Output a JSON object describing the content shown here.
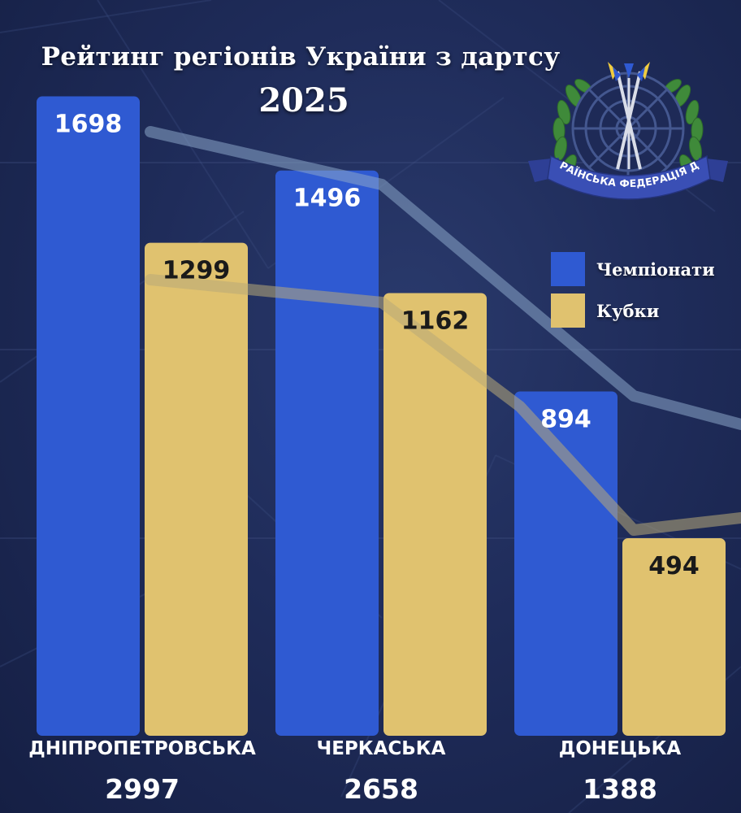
{
  "title": "Рейтинг регіонів України з дартсу",
  "year": "2025",
  "logo": {
    "text": "ВСЕУКРАЇНСЬКА ФЕДЕРАЦІЯ ДАРТСУ"
  },
  "legend": [
    {
      "label": "Чемпіонати",
      "color": "#2f5ad2"
    },
    {
      "label": "Кубки",
      "color": "#e0c26f"
    }
  ],
  "chart_data": {
    "type": "bar",
    "categories": [
      "ДНІПРОПЕТРОВСЬКА",
      "ЧЕРКАСЬКА",
      "ДОНЕЦЬКА"
    ],
    "totals": [
      2997,
      2658,
      1388
    ],
    "series": [
      {
        "name": "Чемпіонати",
        "color": "#2f5ad2",
        "values": [
          1698,
          1496,
          894
        ]
      },
      {
        "name": "Кубки",
        "color": "#e0c26f",
        "values": [
          1299,
          1162,
          494
        ]
      }
    ],
    "legend": "right",
    "grid": true
  }
}
